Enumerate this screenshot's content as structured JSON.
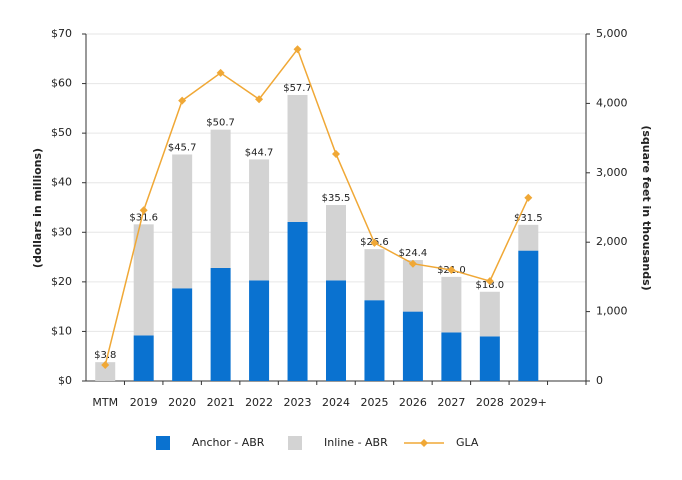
{
  "chart_data": {
    "type": "bar-line",
    "categories": [
      "MTM",
      "2019",
      "2020",
      "2021",
      "2022",
      "2023",
      "2024",
      "2025",
      "2026",
      "2027",
      "2028",
      "2029+",
      null
    ],
    "series": [
      {
        "name": "Anchor - ABR",
        "color": "#0a72d0",
        "values": [
          0,
          9.2,
          18.7,
          22.8,
          20.3,
          32.1,
          20.3,
          16.3,
          14.0,
          9.8,
          9.0,
          26.3,
          null
        ]
      },
      {
        "name": "Inline - ABR",
        "color": "#d3d3d3",
        "values": [
          3.8,
          22.4,
          27.0,
          27.9,
          24.4,
          25.6,
          15.2,
          10.3,
          10.4,
          11.2,
          9.0,
          5.2,
          null
        ]
      },
      {
        "name": "GLA",
        "color": "#f0a836",
        "axis": "y2",
        "values": [
          230,
          2460,
          4040,
          4440,
          4060,
          4780,
          3270,
          1990,
          1690,
          1600,
          1440,
          2640,
          null
        ]
      }
    ],
    "totals": {
      "values": [
        3.8,
        31.6,
        45.7,
        50.7,
        44.7,
        57.7,
        35.5,
        26.6,
        24.4,
        21.0,
        18.0,
        31.5,
        null
      ],
      "value_labels": [
        "$3.8",
        "$31.6",
        "$45.7",
        "$50.7",
        "$44.7",
        "$57.7",
        "$35.5",
        "$26.6",
        "$24.4",
        "$21.0",
        "$18.0",
        "$31.5",
        null
      ]
    },
    "y_label": "(dollars in millions)",
    "y2_label": "(square feet in thousands)",
    "ylim": [
      0,
      70
    ],
    "yticks": [
      {
        "value": 0,
        "label": "$0"
      },
      {
        "value": 10,
        "label": "$10"
      },
      {
        "value": 20,
        "label": "$20"
      },
      {
        "value": 30,
        "label": "$30"
      },
      {
        "value": 40,
        "label": "$40"
      },
      {
        "value": 50,
        "label": "$50"
      },
      {
        "value": 60,
        "label": "$60"
      },
      {
        "value": 70,
        "label": "$70"
      }
    ],
    "y2lim": [
      0,
      5000
    ],
    "y2ticks": [
      0,
      {
        "value": 1000,
        "label": "1,000"
      },
      {
        "value": 2000,
        "label": "2,000"
      },
      {
        "value": 3000,
        "label": "3,000"
      },
      {
        "value": 4000,
        "label": "4,000"
      },
      {
        "value": 5000,
        "label": "5,000"
      }
    ],
    "grid": true,
    "legend": "bottom"
  }
}
